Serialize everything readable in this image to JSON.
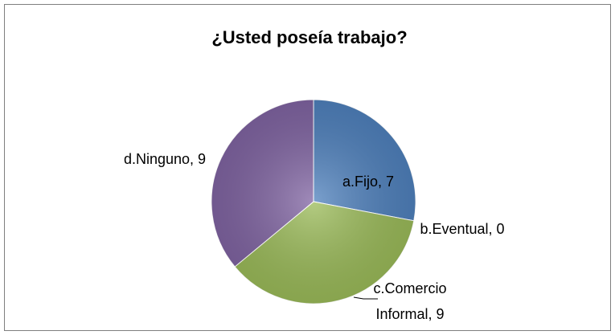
{
  "chart_data": {
    "type": "pie",
    "title": "¿Usted poseía trabajo?",
    "values": [
      7,
      0,
      9,
      9
    ],
    "value_labels": [
      "a.Fijo, 7",
      "b.Eventual, 0",
      "c.Comercio Informal, 9",
      "d.Ninguno, 9"
    ],
    "colors": [
      "#4f81bd",
      "#c0504d",
      "#9bbb59",
      "#8064a2"
    ]
  }
}
